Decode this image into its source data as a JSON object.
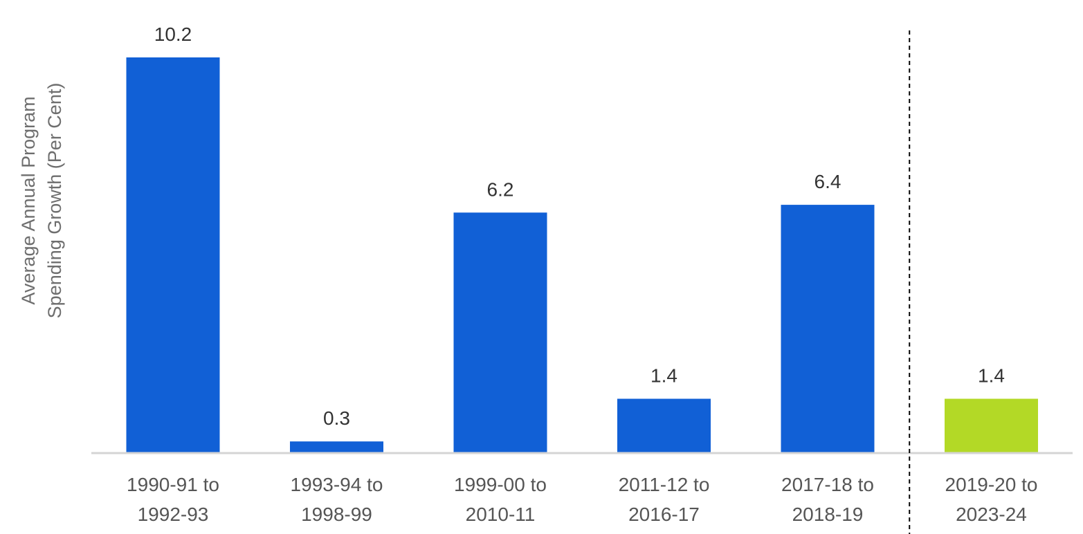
{
  "chart_data": {
    "type": "bar",
    "title": "",
    "xlabel": "",
    "ylabel_lines": [
      "Average Annual Program",
      "Spending Growth (Per Cent)"
    ],
    "categories": [
      [
        "1990-91 to",
        "1992-93"
      ],
      [
        "1993-94 to",
        "1998-99"
      ],
      [
        "1999-00 to",
        "2010-11"
      ],
      [
        "2011-12 to",
        "2016-17"
      ],
      [
        "2017-18 to",
        "2018-19"
      ],
      [
        "2019-20 to",
        "2023-24"
      ]
    ],
    "values": [
      10.2,
      0.3,
      6.2,
      1.4,
      6.4,
      1.4
    ],
    "value_labels": [
      "10.2",
      "0.3",
      "6.2",
      "1.4",
      "6.4",
      "1.4"
    ],
    "bar_colors": [
      "#1160D6",
      "#1160D6",
      "#1160D6",
      "#1160D6",
      "#1160D6",
      "#B3D926"
    ],
    "ylim": [
      0,
      10.2
    ],
    "grid": false,
    "axis_color": "#d4d4d4",
    "separator": {
      "after_category_index": 4,
      "style": "dashed",
      "color": "#000000"
    }
  }
}
